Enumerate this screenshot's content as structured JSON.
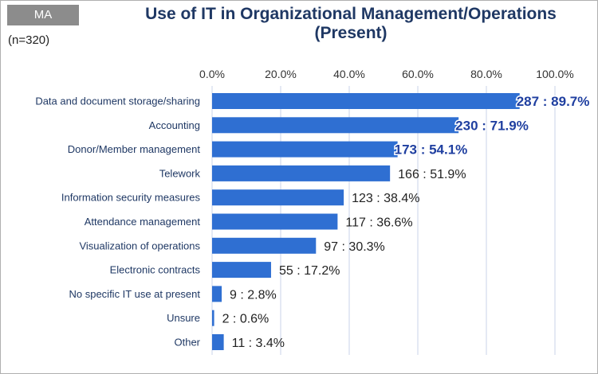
{
  "badge": "MA",
  "sample_size": "(n=320)",
  "chart_data": {
    "type": "bar",
    "orientation": "horizontal",
    "title": "Use of IT in Organizational Management/Operations (Present)",
    "title_lines": [
      "Use of IT in Organizational Management/Operations",
      "(Present)"
    ],
    "xlim": [
      0,
      100
    ],
    "x_ticks": [
      "0.0%",
      "20.0%",
      "40.0%",
      "60.0%",
      "80.0%",
      "100.0%"
    ],
    "grid": true,
    "categories": [
      "Data and document storage/sharing",
      "Accounting",
      "Donor/Member management",
      "Telework",
      "Information security measures",
      "Attendance management",
      "Visualization of operations",
      "Electronic contracts",
      "No specific IT use at present",
      "Unsure",
      "Other"
    ],
    "values": [
      89.7,
      71.9,
      54.1,
      51.9,
      38.4,
      36.6,
      30.3,
      17.2,
      2.8,
      0.6,
      3.4
    ],
    "data_labels": [
      "287 : 89.7%",
      "230 : 71.9%",
      "173 : 54.1%",
      "166 : 51.9%",
      "123 : 38.4%",
      "117 : 36.6%",
      "97 : 30.3%",
      "55 : 17.2%",
      "9 : 2.8%",
      "2 : 0.6%",
      "11 : 3.4%"
    ],
    "highlighted_top": 3,
    "colors": {
      "bar": "#2f6fd2",
      "label_text": "#222222",
      "highlight_text": "#1f3fa0",
      "grid": "#c9d3e8",
      "category_text": "#1f3864"
    }
  }
}
